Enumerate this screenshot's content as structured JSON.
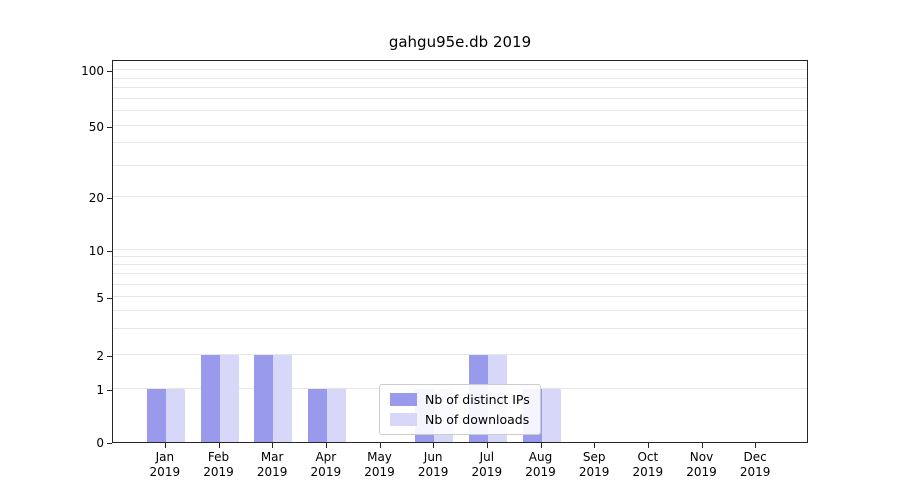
{
  "chart_data": {
    "type": "bar",
    "title": "gahgu95e.db 2019",
    "categories": [
      "Jan 2019",
      "Feb 2019",
      "Mar 2019",
      "Apr 2019",
      "May 2019",
      "Jun 2019",
      "Jul 2019",
      "Aug 2019",
      "Sep 2019",
      "Oct 2019",
      "Nov 2019",
      "Dec 2019"
    ],
    "series": [
      {
        "name": "Nb of distinct IPs",
        "color": "#9a9aec",
        "values": [
          1,
          2,
          2,
          1,
          0,
          1,
          2,
          1,
          0,
          0,
          0,
          0
        ]
      },
      {
        "name": "Nb of downloads",
        "color": "#d7d7f9",
        "values": [
          1,
          2,
          2,
          1,
          0,
          1,
          2,
          1,
          0,
          0,
          0,
          0
        ]
      }
    ],
    "xlabel": "",
    "ylabel": "",
    "y_scale": "symlog",
    "y_ticks": [
      0,
      1,
      2,
      5,
      10,
      20,
      50,
      100
    ],
    "y_minor_gridlines": [
      3,
      4,
      6,
      7,
      8,
      9,
      30,
      40,
      60,
      70,
      80,
      90
    ],
    "ylim": [
      0,
      120
    ],
    "grid": true,
    "legend_position": "lower center"
  }
}
